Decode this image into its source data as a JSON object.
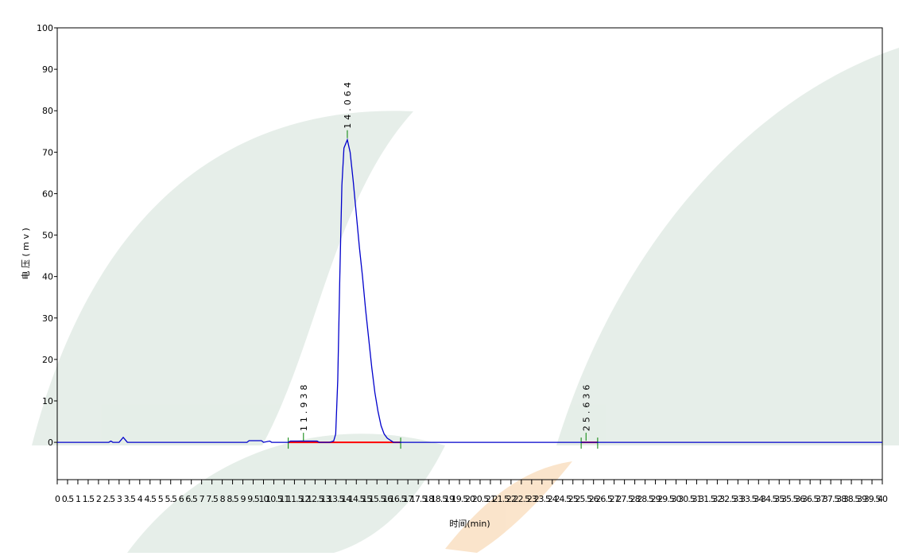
{
  "chart_data": {
    "type": "line",
    "ylabel": "电 压 ( m v )",
    "xlabel": "时间(min)",
    "x": [
      0,
      2.5,
      2.6,
      2.7,
      3.0,
      3.2,
      3.3,
      3.4,
      9.2,
      9.3,
      9.9,
      10.0,
      10.3,
      10.4,
      11.2,
      11.3,
      12.6,
      12.7,
      13.2,
      13.4,
      13.5,
      13.6,
      13.7,
      13.8,
      13.9,
      14.064,
      14.2,
      14.35,
      14.5,
      14.65,
      14.8,
      14.95,
      15.1,
      15.25,
      15.4,
      15.55,
      15.7,
      15.85,
      16.0,
      16.3,
      40
    ],
    "series": [
      {
        "color": "#0000cc",
        "values": [
          0,
          0,
          0.3,
          0,
          0,
          1.2,
          0.6,
          0,
          0,
          0.4,
          0.4,
          0,
          0.3,
          0,
          0,
          0.3,
          0.3,
          0,
          0,
          0.3,
          2,
          15,
          40,
          62,
          71,
          73,
          70,
          63,
          55,
          47,
          40,
          32,
          25,
          18,
          12,
          7.5,
          4,
          2,
          1,
          0,
          0
        ]
      }
    ],
    "peaks": [
      "11.938",
      "14.064",
      "25.636"
    ],
    "baselines": {
      "color": "#ff0000",
      "segments": [
        [
          11.2,
          16.65
        ],
        [
          25.4,
          26.2
        ]
      ]
    },
    "xlim": [
      0,
      40
    ],
    "ylim": [
      -9,
      100
    ],
    "yticks": [
      0,
      10,
      20,
      30,
      40,
      50,
      60,
      70,
      80,
      90,
      100
    ],
    "xticks": [
      0,
      0.5,
      1,
      1.5,
      2,
      2.5,
      3,
      3.5,
      4,
      4.5,
      5,
      5.5,
      6,
      6.5,
      7,
      7.5,
      8,
      8.5,
      9,
      9.5,
      10,
      10.5,
      11,
      11.5,
      12,
      12.5,
      13,
      13.5,
      14,
      14.5,
      15,
      15.5,
      16,
      16.5,
      17,
      17.5,
      18,
      18.5,
      19,
      19.5,
      20,
      20.5,
      21,
      21.5,
      22,
      22.5,
      23,
      23.5,
      24,
      24.5,
      25,
      25.5,
      26,
      26.5,
      27,
      27.5,
      28,
      28.5,
      29,
      29.5,
      30,
      30.5,
      31,
      31.5,
      32,
      32.5,
      33,
      33.5,
      34,
      34.5,
      35,
      35.5,
      36,
      36.5,
      37,
      37.5,
      38,
      38.5,
      39,
      39.5,
      40
    ],
    "peak_color": "#008000"
  }
}
